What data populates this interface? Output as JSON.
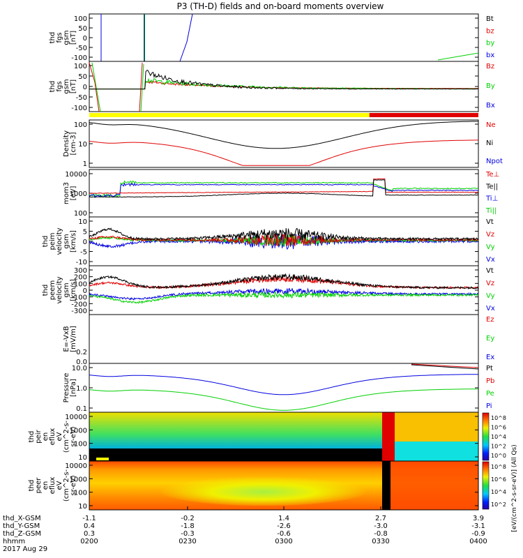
{
  "title": "P3 (TH-D) fields and on-board moments overview",
  "colors": {
    "black": "#000000",
    "red": "#e00000",
    "green": "#00d000",
    "blue": "#0000e0",
    "teal": "#006060",
    "yellow": "#ffff00"
  },
  "chart_data": [
    {
      "type": "line",
      "panel": "fgs",
      "ylabel": [
        "thd",
        "fgs",
        "gsm",
        "[nT]"
      ],
      "ylim": [
        -100,
        100
      ],
      "yticks": [
        "100",
        "50",
        "0",
        "-50",
        "-100"
      ],
      "legend": [
        {
          "name": "Bt",
          "color": "black"
        },
        {
          "name": "bz",
          "color": "red"
        },
        {
          "name": "by",
          "color": "green"
        },
        {
          "name": "bx",
          "color": "blue"
        }
      ]
    },
    {
      "type": "line",
      "panel": "fgs_hr",
      "ylabel": [
        "thd",
        "fgs",
        "gsm",
        "[nT]"
      ],
      "ylim": [
        -120,
        100
      ],
      "yticks": [
        "100",
        "50",
        "0",
        "-50",
        "-100"
      ],
      "legend": [
        {
          "name": "Bz",
          "color": "red"
        },
        {
          "name": "By",
          "color": "green"
        },
        {
          "name": "Bx",
          "color": "blue"
        }
      ]
    },
    {
      "type": "bar",
      "panel": "mode",
      "segments": [
        {
          "from": 0,
          "to": 0.72,
          "color": "yellow"
        },
        {
          "from": 0.72,
          "to": 1,
          "color": "red"
        }
      ]
    },
    {
      "type": "line",
      "panel": "density",
      "ylabel": [
        "Density",
        "[cm-3]"
      ],
      "yscale": "log",
      "yticks": [
        "100",
        "10",
        "1"
      ],
      "legend": [
        {
          "name": "Ne",
          "color": "red"
        },
        {
          "name": "Ni",
          "color": "black"
        },
        {
          "name": "Npot",
          "color": "blue"
        }
      ]
    },
    {
      "type": "line",
      "panel": "temperature",
      "ylabel": [
        "mom3",
        "[eV]"
      ],
      "yscale": "log",
      "yticks": [
        "10000",
        "1000",
        "100"
      ],
      "legend": [
        {
          "name": "Te⊥",
          "color": "red"
        },
        {
          "name": "Te||",
          "color": "black"
        },
        {
          "name": "Ti⊥",
          "color": "blue"
        },
        {
          "name": "Ti||",
          "color": "green"
        }
      ]
    },
    {
      "type": "line",
      "panel": "peim_velocity",
      "ylabel": [
        "thd",
        "peim",
        "velocity",
        "gsm",
        "[km/s]"
      ],
      "ylim": [
        -10,
        10
      ],
      "yticks": [
        "10",
        "5",
        "0",
        "-5",
        "-10"
      ],
      "legend": [
        {
          "name": "Vt",
          "color": "black"
        },
        {
          "name": "Vz",
          "color": "red"
        },
        {
          "name": "Vy",
          "color": "green"
        },
        {
          "name": "Vx",
          "color": "blue"
        }
      ]
    },
    {
      "type": "line",
      "panel": "peem_velocity",
      "ylabel": [
        "thd",
        "peem",
        "velocity",
        "gsm",
        "[km/s]"
      ],
      "ylim": [
        -300,
        300
      ],
      "yticks": [
        "300",
        "200",
        "100",
        "0",
        "-100",
        "-200",
        "-300"
      ],
      "legend": [
        {
          "name": "Vt",
          "color": "black"
        },
        {
          "name": "Vz",
          "color": "red"
        },
        {
          "name": "Vy",
          "color": "green"
        },
        {
          "name": "Vx",
          "color": "blue"
        }
      ]
    },
    {
      "type": "line",
      "panel": "efield",
      "ylabel": [
        "E=-VxB",
        "[mV/m]"
      ],
      "legend": [
        {
          "name": "Ez",
          "color": "red"
        },
        {
          "name": "Ey",
          "color": "green"
        },
        {
          "name": "Ex",
          "color": "blue"
        }
      ]
    },
    {
      "type": "line",
      "panel": "pressure",
      "ylabel": [
        "Pressure",
        "[nPa]"
      ],
      "yscale": "log",
      "yticks": [
        "10.0",
        "1.0",
        "0.1"
      ],
      "legend": [
        {
          "name": "Pt",
          "color": "black"
        },
        {
          "name": "Pb",
          "color": "red"
        },
        {
          "name": "Pe",
          "color": "green"
        },
        {
          "name": "Pi",
          "color": "blue"
        }
      ]
    },
    {
      "type": "heatmap",
      "panel": "peir_spec",
      "ylabel": [
        "thd",
        "peir",
        "en",
        "eflux",
        "eV",
        "(cm^2-s-",
        "sr-eV)"
      ],
      "yscale": "log",
      "yticks": [
        "10000",
        "1000",
        "100",
        "10"
      ],
      "colorbar_ticks": [
        "10^8",
        "10^6",
        "10^4",
        "10^2",
        "10^0"
      ]
    },
    {
      "type": "heatmap",
      "panel": "peer_spec",
      "ylabel": [
        "thd",
        "peer",
        "en",
        "eflux",
        "eV",
        "(cm^2-s-",
        "sr-eV)"
      ],
      "yscale": "log",
      "yticks": [
        "10000",
        "1000",
        "100",
        "10"
      ],
      "colorbar_ticks": [
        "10^8",
        "10^6",
        "10^4",
        "10^2"
      ]
    }
  ],
  "colorbar_label": "[eV/(cm^2-s-sr-eV)] (All Qs)",
  "xaxis": {
    "rows": [
      {
        "label": "thd_X-GSM",
        "values": [
          "-1.1",
          "-0.2",
          "1.4",
          "2.7",
          "3.9"
        ]
      },
      {
        "label": "thd_Y-GSM",
        "values": [
          "0.4",
          "-1.8",
          "-2.6",
          "-3.0",
          "-3.1"
        ]
      },
      {
        "label": "thd_Z-GSM",
        "values": [
          "0.3",
          "-0.3",
          "-0.6",
          "-0.8",
          "-0.9"
        ]
      },
      {
        "label": "hhmm",
        "values": [
          "0200",
          "0230",
          "0300",
          "0330",
          "0400"
        ]
      }
    ],
    "date": "2017 Aug 29"
  }
}
